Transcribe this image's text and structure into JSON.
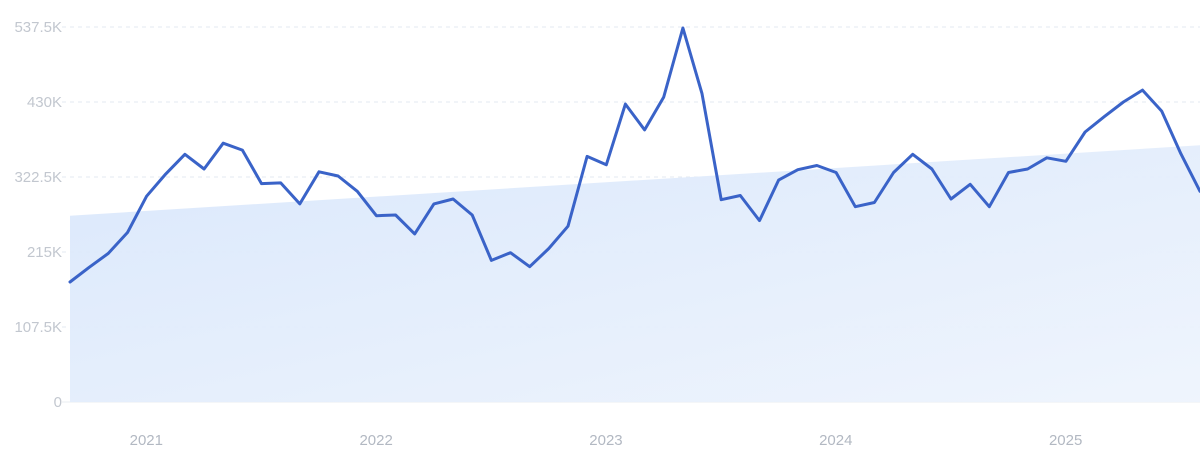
{
  "chart_data": {
    "type": "line",
    "title": "",
    "xlabel": "",
    "ylabel": "",
    "ylim": [
      0,
      537500
    ],
    "y_ticks": [
      0,
      107500,
      215000,
      322500,
      430000,
      537500
    ],
    "y_tick_labels": [
      "0",
      "107.5K",
      "215K",
      "322.5K",
      "430K",
      "537.5K"
    ],
    "x_tick_labels": [
      "2021",
      "2022",
      "2023",
      "2024",
      "2025"
    ],
    "x_range": [
      "2020-11",
      "2025-10"
    ],
    "grid": true,
    "legend": "none",
    "colors": {
      "line": "#3a63c8",
      "trend_fill": "#dce9fb",
      "grid": "#e3e8f0"
    },
    "series": [
      {
        "x": [
          "2020-11",
          "2020-12",
          "2021-01",
          "2021-02",
          "2021-03",
          "2021-04",
          "2021-05",
          "2021-06",
          "2021-07",
          "2021-08",
          "2021-09",
          "2021-10",
          "2021-11",
          "2021-12",
          "2022-01",
          "2022-02",
          "2022-03",
          "2022-04",
          "2022-05",
          "2022-06",
          "2022-07",
          "2022-08",
          "2022-09",
          "2022-10",
          "2022-11",
          "2022-12",
          "2023-01",
          "2023-02",
          "2023-03",
          "2023-04",
          "2023-05",
          "2023-06",
          "2023-07",
          "2023-08",
          "2023-09",
          "2023-10",
          "2023-11",
          "2023-12",
          "2024-01",
          "2024-02",
          "2024-03",
          "2024-04",
          "2024-05",
          "2024-06",
          "2024-07",
          "2024-08",
          "2024-09",
          "2024-10",
          "2024-11",
          "2024-12",
          "2025-01",
          "2025-02",
          "2025-03",
          "2025-04",
          "2025-05",
          "2025-06",
          "2025-07",
          "2025-08",
          "2025-09",
          "2025-10"
        ],
        "values": [
          172000,
          193000,
          213000,
          243000,
          295000,
          327000,
          355000,
          334000,
          371000,
          361000,
          313000,
          314000,
          284000,
          330000,
          324000,
          302000,
          267000,
          268000,
          241000,
          284000,
          291000,
          268000,
          203000,
          214000,
          194000,
          220000,
          252000,
          352000,
          340000,
          427000,
          390000,
          437000,
          536000,
          442000,
          290000,
          296000,
          260000,
          318000,
          333000,
          339000,
          329000,
          280000,
          286000,
          329000,
          355000,
          334000,
          291000,
          312000,
          280000,
          329000,
          334000,
          350000,
          345000,
          387000,
          409000,
          430000,
          447000,
          417000,
          356000,
          302000
        ]
      }
    ],
    "trend": {
      "start": 267000,
      "end": 368000
    }
  }
}
